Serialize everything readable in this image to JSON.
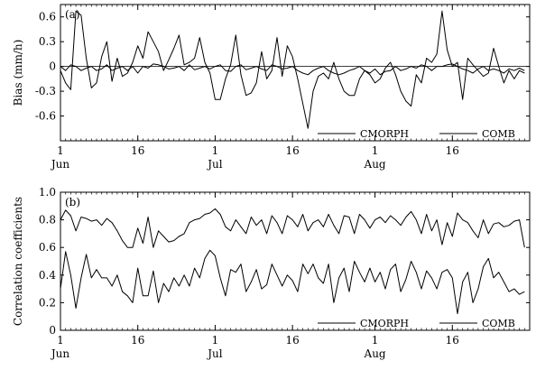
{
  "chart_data": [
    {
      "panel_label": "(a)",
      "type": "line",
      "ylabel": "Bias (mm/h)",
      "ylim": [
        -0.9,
        0.75
      ],
      "yticks": [
        0.6,
        0.3,
        0,
        -0.3,
        -0.6
      ],
      "ytick_labels": [
        "0.6",
        "0.3",
        "0",
        "-0.3",
        "-0.6"
      ],
      "zero_line": true,
      "xlim": [
        0,
        91
      ],
      "xticks": [
        {
          "day": 0,
          "label": "1",
          "month": "Jun"
        },
        {
          "day": 15,
          "label": "16",
          "month": ""
        },
        {
          "day": 30,
          "label": "1",
          "month": "Jul"
        },
        {
          "day": 45,
          "label": "16",
          "month": ""
        },
        {
          "day": 61,
          "label": "1",
          "month": "Aug"
        },
        {
          "day": 76,
          "label": "16",
          "month": ""
        }
      ],
      "legend": [
        "CMORPH",
        "COMB"
      ],
      "legend_position": "bottom-right",
      "series": [
        {
          "name": "CMORPH",
          "values": [
            -0.05,
            -0.2,
            -0.28,
            0.67,
            0.62,
            0.1,
            -0.26,
            -0.2,
            0.12,
            0.3,
            -0.18,
            0.1,
            -0.12,
            -0.08,
            0.05,
            0.25,
            0.1,
            0.42,
            0.3,
            0.18,
            -0.05,
            0.08,
            0.22,
            0.38,
            0.02,
            0.05,
            0.1,
            0.35,
            0.05,
            -0.08,
            -0.4,
            -0.4,
            -0.15,
            0.02,
            0.38,
            -0.1,
            -0.35,
            -0.32,
            -0.2,
            0.18,
            -0.15,
            -0.05,
            0.35,
            -0.12,
            0.25,
            0.12,
            -0.15,
            -0.45,
            -0.75,
            -0.3,
            -0.12,
            -0.08,
            -0.15,
            0.05,
            -0.15,
            -0.3,
            -0.35,
            -0.35,
            -0.15,
            -0.05,
            -0.1,
            -0.2,
            -0.15,
            -0.02,
            0.05,
            -0.1,
            -0.3,
            -0.42,
            -0.48,
            -0.1,
            -0.2,
            0.1,
            0.05,
            0.15,
            0.67,
            0.2,
            0.0,
            0.05,
            -0.4,
            0.1,
            0.02,
            -0.05,
            -0.12,
            -0.08,
            0.22,
            0.0,
            -0.2,
            -0.05,
            -0.15,
            -0.05,
            -0.08
          ]
        },
        {
          "name": "COMB",
          "values": [
            0.0,
            -0.05,
            0.02,
            0.0,
            -0.05,
            -0.02,
            0.0,
            -0.05,
            -0.03,
            0.02,
            -0.05,
            -0.02,
            0.0,
            -0.05,
            0.0,
            -0.08,
            0.0,
            -0.02,
            0.03,
            0.02,
            0.0,
            -0.03,
            -0.02,
            0.0,
            -0.05,
            0.02,
            -0.04,
            -0.02,
            0.0,
            -0.03,
            0.0,
            0.02,
            -0.05,
            -0.06,
            0.0,
            0.02,
            -0.04,
            -0.02,
            0.0,
            -0.03,
            -0.05,
            0.02,
            0.0,
            -0.03,
            -0.02,
            0.0,
            -0.05,
            -0.08,
            -0.1,
            -0.05,
            -0.02,
            0.0,
            -0.05,
            -0.08,
            -0.1,
            -0.08,
            -0.05,
            -0.03,
            0.0,
            -0.05,
            -0.08,
            -0.03,
            -0.1,
            -0.06,
            -0.05,
            0.0,
            -0.05,
            -0.03,
            0.0,
            -0.02,
            0.02,
            0.0,
            -0.05,
            0.0,
            0.0,
            0.02,
            0.03,
            0.0,
            -0.03,
            -0.05,
            -0.08,
            -0.03,
            0.0,
            -0.05,
            -0.03,
            -0.05,
            -0.08,
            -0.03,
            -0.05,
            -0.02,
            -0.05
          ]
        }
      ]
    },
    {
      "panel_label": "(b)",
      "type": "line",
      "ylabel": "Correlation coefficients",
      "ylim": [
        0,
        1.0
      ],
      "yticks": [
        1.0,
        0.8,
        0.6,
        0.4,
        0.2,
        0
      ],
      "ytick_labels": [
        "1.0",
        "0.8",
        "0.6",
        "0.4",
        "0.2",
        "0"
      ],
      "zero_line": false,
      "xlim": [
        0,
        91
      ],
      "xticks": [
        {
          "day": 0,
          "label": "1",
          "month": "Jun"
        },
        {
          "day": 15,
          "label": "16",
          "month": ""
        },
        {
          "day": 30,
          "label": "1",
          "month": "Jul"
        },
        {
          "day": 45,
          "label": "16",
          "month": ""
        },
        {
          "day": 61,
          "label": "1",
          "month": "Aug"
        },
        {
          "day": 76,
          "label": "16",
          "month": ""
        }
      ],
      "legend": [
        "CMORPH",
        "COMB"
      ],
      "legend_position": "bottom-right",
      "series": [
        {
          "name": "CMORPH",
          "values": [
            0.8,
            0.87,
            0.83,
            0.72,
            0.82,
            0.81,
            0.79,
            0.8,
            0.76,
            0.81,
            0.78,
            0.72,
            0.65,
            0.6,
            0.6,
            0.74,
            0.63,
            0.82,
            0.6,
            0.72,
            0.68,
            0.64,
            0.65,
            0.68,
            0.7,
            0.78,
            0.8,
            0.81,
            0.84,
            0.85,
            0.88,
            0.84,
            0.75,
            0.72,
            0.8,
            0.75,
            0.7,
            0.82,
            0.76,
            0.8,
            0.7,
            0.83,
            0.78,
            0.7,
            0.83,
            0.8,
            0.75,
            0.84,
            0.72,
            0.78,
            0.8,
            0.75,
            0.84,
            0.76,
            0.7,
            0.83,
            0.82,
            0.7,
            0.84,
            0.8,
            0.74,
            0.8,
            0.82,
            0.78,
            0.83,
            0.8,
            0.76,
            0.82,
            0.86,
            0.8,
            0.7,
            0.84,
            0.72,
            0.8,
            0.62,
            0.78,
            0.68,
            0.85,
            0.8,
            0.78,
            0.72,
            0.67,
            0.8,
            0.7,
            0.77,
            0.78,
            0.75,
            0.76,
            0.79,
            0.8,
            0.6
          ]
        },
        {
          "name": "COMB",
          "values": [
            0.3,
            0.57,
            0.4,
            0.16,
            0.38,
            0.55,
            0.38,
            0.44,
            0.38,
            0.38,
            0.32,
            0.4,
            0.28,
            0.25,
            0.2,
            0.45,
            0.25,
            0.25,
            0.43,
            0.2,
            0.34,
            0.28,
            0.38,
            0.32,
            0.4,
            0.32,
            0.45,
            0.38,
            0.52,
            0.58,
            0.54,
            0.38,
            0.25,
            0.44,
            0.42,
            0.48,
            0.28,
            0.35,
            0.44,
            0.3,
            0.33,
            0.48,
            0.4,
            0.32,
            0.4,
            0.36,
            0.28,
            0.48,
            0.41,
            0.48,
            0.38,
            0.34,
            0.48,
            0.2,
            0.38,
            0.45,
            0.28,
            0.5,
            0.42,
            0.35,
            0.45,
            0.35,
            0.42,
            0.3,
            0.44,
            0.48,
            0.28,
            0.37,
            0.5,
            0.42,
            0.3,
            0.43,
            0.38,
            0.3,
            0.42,
            0.44,
            0.38,
            0.12,
            0.35,
            0.42,
            0.2,
            0.3,
            0.46,
            0.52,
            0.38,
            0.42,
            0.35,
            0.28,
            0.3,
            0.26,
            0.28
          ]
        }
      ]
    }
  ]
}
